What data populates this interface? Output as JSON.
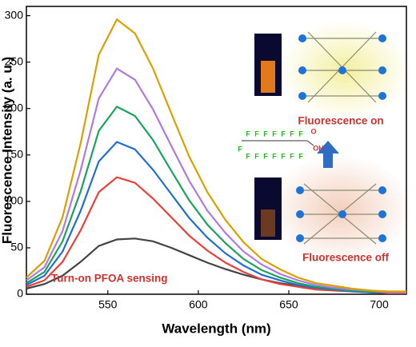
{
  "chart_data": {
    "type": "line",
    "xlabel": "Wavelength (nm)",
    "ylabel": "Fluorescence Intensity (a. u.)",
    "x": [
      505,
      515,
      525,
      535,
      545,
      555,
      565,
      575,
      585,
      595,
      605,
      615,
      625,
      635,
      645,
      655,
      665,
      675,
      685,
      695,
      705,
      715
    ],
    "xlim": [
      505,
      715
    ],
    "xticks": [
      550,
      600,
      650,
      700
    ],
    "ylim": [
      0,
      310
    ],
    "yticks": [
      0,
      50,
      100,
      150,
      200,
      250,
      300
    ],
    "series": [
      {
        "color": "#444444",
        "values": [
          6,
          11,
          20,
          35,
          52,
          59,
          60,
          57,
          50,
          42,
          34,
          27,
          21,
          16,
          12,
          9,
          7,
          5,
          4,
          3,
          2,
          2
        ]
      },
      {
        "color": "#e8403a",
        "values": [
          8,
          15,
          35,
          69,
          110,
          126,
          120,
          103,
          83,
          63,
          47,
          34,
          24,
          16,
          11,
          8,
          5,
          4,
          3,
          2,
          1,
          1
        ]
      },
      {
        "color": "#1f6fd1",
        "values": [
          10,
          20,
          46,
          90,
          143,
          164,
          156,
          134,
          108,
          82,
          61,
          44,
          31,
          21,
          15,
          10,
          7,
          5,
          3,
          2,
          2,
          2
        ]
      },
      {
        "color": "#1aa35a",
        "values": [
          12,
          24,
          57,
          111,
          176,
          202,
          192,
          166,
          133,
          101,
          75,
          55,
          38,
          26,
          18,
          12,
          8,
          6,
          4,
          3,
          2,
          2
        ]
      },
      {
        "color": "#b07ae0",
        "values": [
          15,
          29,
          68,
          134,
          211,
          243,
          231,
          199,
          160,
          122,
          90,
          66,
          46,
          32,
          22,
          15,
          10,
          7,
          5,
          4,
          2,
          2
        ]
      },
      {
        "color": "#d9a000",
        "values": [
          18,
          36,
          83,
          163,
          258,
          296,
          281,
          243,
          195,
          148,
          110,
          80,
          56,
          38,
          27,
          18,
          12,
          9,
          6,
          4,
          3,
          3
        ]
      }
    ],
    "annotations": [
      "Turn-on PFOA sensing",
      "Fluorescence on",
      "Fluorescence off"
    ],
    "molecule_labels": [
      "F",
      "F",
      "F",
      "F",
      "F",
      "F",
      "F",
      "F",
      "F",
      "F",
      "F",
      "F",
      "F",
      "F",
      "F",
      "O",
      "OH"
    ]
  }
}
